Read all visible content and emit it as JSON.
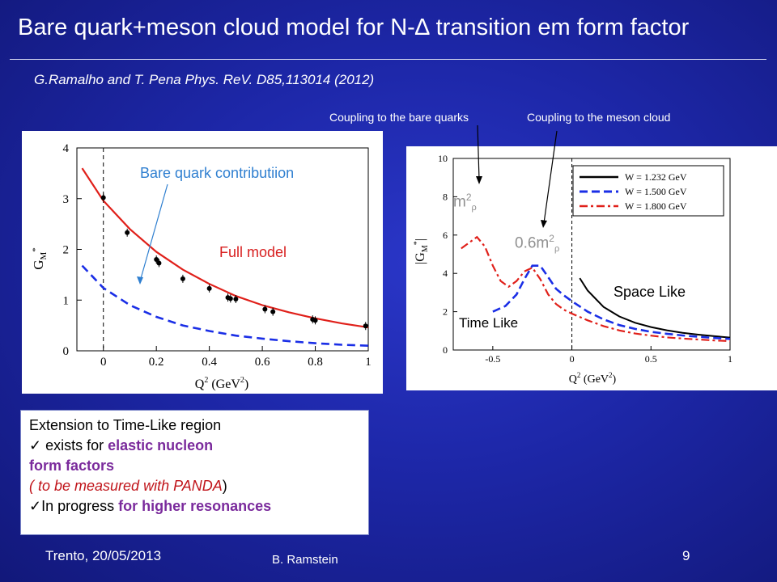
{
  "slide": {
    "title": "Bare quark+meson cloud model  for  N-∆ transition em form factor",
    "reference": "G.Ramalho and T. Pena Phys. ReV. D85,113014 (2012)",
    "caption_bare": "Coupling to the bare quarks",
    "caption_meson": "Coupling to the meson cloud"
  },
  "figure_left": {
    "annotation_bare": "Bare quark contributiion",
    "annotation_full": "Full model",
    "ylabel": "G",
    "ylabel_sub": "M",
    "ylabel_sup": "*",
    "xlabel": "Q",
    "xlabel_sup": "2",
    "xlabel_unit": " (GeV",
    "xlabel_unit_sup": "2",
    "xlabel_close": ")",
    "xticks": [
      "0",
      "0.2",
      "0.4",
      "0.6",
      "0.8",
      "1"
    ],
    "yticks": [
      "0",
      "1",
      "2",
      "3",
      "4"
    ]
  },
  "figure_right": {
    "annotation_m2": "m",
    "annotation_m2_sup": "2",
    "annotation_m2_sub": "ρ",
    "annotation_06": "0.6m",
    "annotation_06_sup": "2",
    "annotation_06_sub": "ρ",
    "label_spacelike": "Space Like",
    "label_timelike": "Time Like",
    "ylabel": "|G",
    "ylabel_sub": "M",
    "ylabel_sup": "*",
    "ylabel_close": "|",
    "xlabel": "Q",
    "xlabel_sup": "2",
    "xlabel_unit": " (GeV",
    "xlabel_unit_sup": "2",
    "xlabel_close": ")",
    "xticks": [
      "-0.5",
      "0",
      "0.5",
      "1"
    ],
    "yticks": [
      "0",
      "2",
      "4",
      "6",
      "8",
      "10"
    ],
    "legend": [
      "W = 1.232 GeV",
      "W = 1.500 GeV",
      "W = 1.800 GeV"
    ]
  },
  "chart_data": [
    {
      "type": "scatter",
      "xlim": [
        -0.1,
        1.0
      ],
      "ylim": [
        0,
        4
      ],
      "series": [
        {
          "name": "Full model",
          "x": [
            -0.08,
            0.0,
            0.1,
            0.2,
            0.3,
            0.4,
            0.5,
            0.6,
            0.7,
            0.8,
            0.9,
            1.0
          ],
          "values": [
            3.6,
            2.96,
            2.4,
            1.95,
            1.6,
            1.32,
            1.08,
            0.9,
            0.76,
            0.64,
            0.54,
            0.46
          ]
        },
        {
          "name": "Bare quark contributiion",
          "x": [
            -0.08,
            0.0,
            0.1,
            0.2,
            0.3,
            0.4,
            0.5,
            0.6,
            0.7,
            0.8,
            0.9,
            1.0
          ],
          "values": [
            1.68,
            1.24,
            0.9,
            0.67,
            0.5,
            0.39,
            0.3,
            0.24,
            0.19,
            0.15,
            0.12,
            0.1
          ]
        },
        {
          "x": [
            0.0,
            0.09,
            0.2,
            0.21,
            0.3,
            0.4,
            0.47,
            0.48,
            0.5,
            0.61,
            0.64,
            0.79,
            0.8,
            0.99
          ],
          "values": [
            3.02,
            2.33,
            1.8,
            1.73,
            1.42,
            1.23,
            1.05,
            1.03,
            1.02,
            0.82,
            0.77,
            0.62,
            0.6,
            0.49
          ]
        }
      ]
    },
    {
      "type": "line",
      "xlim": [
        -0.75,
        1.0
      ],
      "ylim": [
        0,
        10
      ],
      "series": [
        {
          "name": "W = 1.232 GeV",
          "x": [
            0.05,
            0.1,
            0.2,
            0.3,
            0.4,
            0.5,
            0.6,
            0.7,
            0.8,
            0.9,
            1.0
          ],
          "values": [
            3.75,
            3.1,
            2.25,
            1.75,
            1.42,
            1.2,
            1.03,
            0.9,
            0.8,
            0.72,
            0.65
          ]
        },
        {
          "name": "W = 1.500 GeV",
          "x": [
            -0.5,
            -0.42,
            -0.35,
            -0.3,
            -0.25,
            -0.2,
            -0.15,
            -0.1,
            -0.05,
            0.0,
            0.1,
            0.2,
            0.3,
            0.4,
            0.5,
            0.6,
            0.7,
            0.8,
            0.9,
            1.0
          ],
          "values": [
            2.0,
            2.3,
            2.9,
            3.7,
            4.4,
            4.4,
            3.8,
            3.2,
            2.85,
            2.55,
            2.0,
            1.6,
            1.3,
            1.1,
            0.95,
            0.85,
            0.76,
            0.69,
            0.63,
            0.58
          ]
        },
        {
          "name": "W = 1.800 GeV",
          "x": [
            -0.7,
            -0.65,
            -0.6,
            -0.55,
            -0.5,
            -0.45,
            -0.4,
            -0.35,
            -0.3,
            -0.25,
            -0.2,
            -0.15,
            -0.1,
            -0.05,
            0.0,
            0.1,
            0.2,
            0.3,
            0.4,
            0.5,
            0.6,
            0.7,
            0.8,
            0.9,
            1.0
          ],
          "values": [
            5.3,
            5.6,
            5.9,
            5.4,
            4.4,
            3.6,
            3.3,
            3.6,
            4.1,
            4.3,
            3.7,
            2.9,
            2.4,
            2.1,
            1.9,
            1.55,
            1.25,
            1.02,
            0.86,
            0.75,
            0.66,
            0.6,
            0.55,
            0.5,
            0.47
          ]
        }
      ]
    }
  ],
  "infobox": {
    "line1": "Extension to Time-Like region",
    "line2_check": "✓",
    "line2_prefix": " exists for ",
    "line2_highlight": "elastic nucleon",
    "line3_highlight": "form factors",
    "line4_red": "( to be measured with PANDA",
    "line4_close": ")",
    "line5_check": "✓",
    "line5_prefix": "In progress ",
    "line5_highlight": "for higher resonances"
  },
  "footer": {
    "location_date": "Trento, 20/05/2013",
    "author": "B. Ramstein",
    "page": "9"
  },
  "colors": {
    "full_model": "#e0201a",
    "bare_quark": "#1a2ee6",
    "annotation_blue": "#2f7fd0",
    "annotation_red": "#d82020",
    "purple": "#7a2a9c",
    "gray_label": "#909090"
  }
}
